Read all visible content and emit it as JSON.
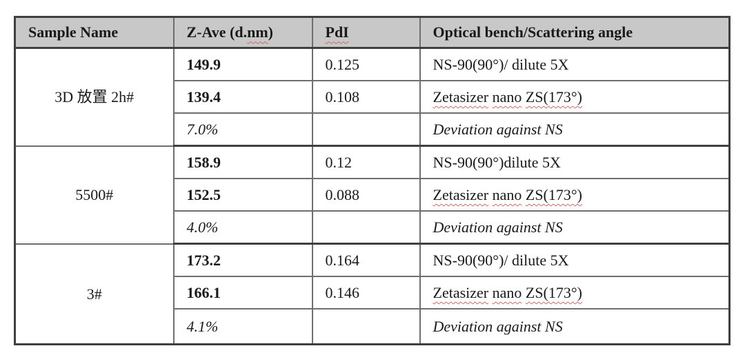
{
  "table": {
    "headers": [
      {
        "id": "sample-name",
        "parts": [
          {
            "text": "Sample Name"
          }
        ]
      },
      {
        "id": "z-ave",
        "parts": [
          {
            "text": "Z-Ave (d."
          },
          {
            "text": "nm",
            "squiggle": true
          },
          {
            "text": ")"
          }
        ]
      },
      {
        "id": "pdi",
        "parts": [
          {
            "text": "PdI",
            "squiggle": true
          }
        ]
      },
      {
        "id": "optical-bench",
        "parts": [
          {
            "text": "Optical bench/Scattering angle"
          }
        ]
      }
    ],
    "groups": [
      {
        "sample": "3D 放置 2h#",
        "rows": [
          {
            "zave": "149.9",
            "pdi": "0.125",
            "bench": [
              {
                "text": "NS-90(90°)/ dilute 5X"
              }
            ]
          },
          {
            "zave": "139.4",
            "pdi": "0.108",
            "bench": [
              {
                "text": "Zetasizer",
                "squiggle": true
              },
              {
                "text": " "
              },
              {
                "text": "nano",
                "squiggle": true
              },
              {
                "text": " "
              },
              {
                "text": "ZS(173°)",
                "squiggle": true
              }
            ]
          },
          {
            "zave": "7.0%",
            "pdi": "",
            "italic": true,
            "bench": [
              {
                "text": "Deviation against NS"
              }
            ]
          }
        ]
      },
      {
        "sample": "5500#",
        "rows": [
          {
            "zave": "158.9",
            "pdi": "0.12",
            "bench": [
              {
                "text": "NS-90(90°)dilute 5X"
              }
            ]
          },
          {
            "zave": "152.5",
            "pdi": "0.088",
            "bench": [
              {
                "text": "Zetasizer",
                "squiggle": true
              },
              {
                "text": " "
              },
              {
                "text": "nano",
                "squiggle": true
              },
              {
                "text": " "
              },
              {
                "text": "ZS(173°)",
                "squiggle": true
              }
            ]
          },
          {
            "zave": "4.0%",
            "pdi": "",
            "italic": true,
            "bench": [
              {
                "text": "Deviation against NS"
              }
            ]
          }
        ]
      },
      {
        "sample": "3#",
        "rows": [
          {
            "zave": "173.2",
            "pdi": "0.164",
            "bench": [
              {
                "text": "NS-90(90°)/ dilute 5X"
              }
            ]
          },
          {
            "zave": "166.1",
            "pdi": "0.146",
            "bench": [
              {
                "text": "Zetasizer",
                "squiggle": true
              },
              {
                "text": " "
              },
              {
                "text": "nano",
                "squiggle": true
              },
              {
                "text": " "
              },
              {
                "text": "ZS(173°)",
                "squiggle": true
              }
            ]
          },
          {
            "zave": "4.1%",
            "pdi": "",
            "italic": true,
            "bench": [
              {
                "text": "Deviation against NS"
              }
            ]
          }
        ]
      }
    ]
  },
  "colors": {
    "header_bg": "#c8c8c8",
    "border_inner": "#6e6e6e",
    "border_strong": "#3f3f3f",
    "squiggle": "#c96a5f",
    "text": "#1a1a1a",
    "page_bg": "#ffffff"
  }
}
